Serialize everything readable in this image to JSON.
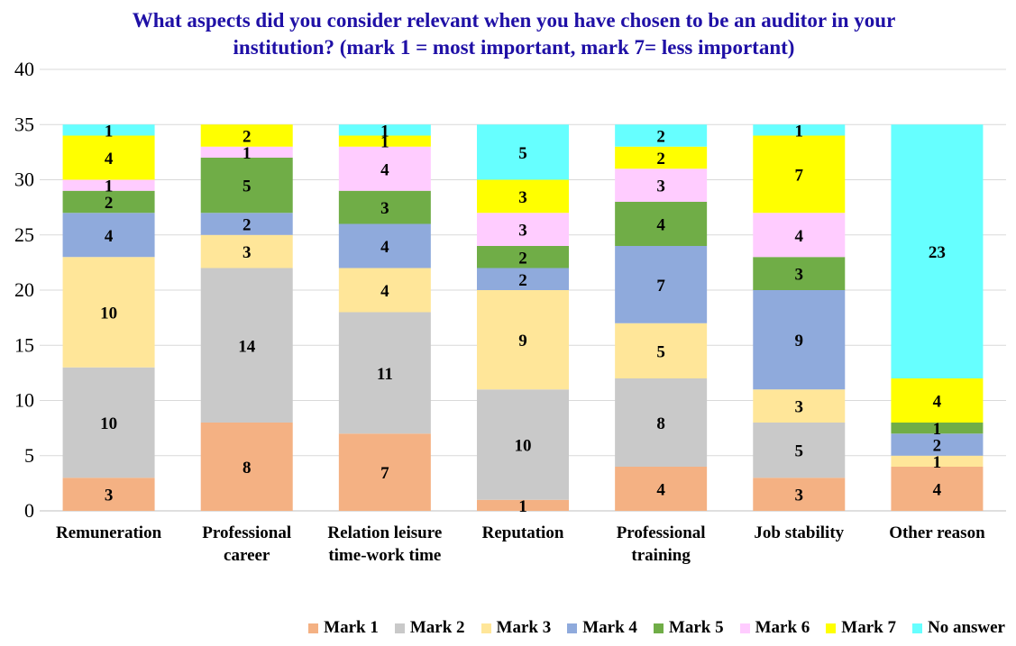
{
  "chart_data": {
    "type": "bar",
    "stacked": true,
    "title": "What aspects did you consider relevant when you have chosen to be an auditor in your institution? (mark 1 = most important, mark 7= less important)",
    "ylim": [
      0,
      40
    ],
    "yticks": [
      0,
      5,
      10,
      15,
      20,
      25,
      30,
      35,
      40
    ],
    "grid": true,
    "legend_position": "bottom-right",
    "categories": [
      [
        "Remuneration"
      ],
      [
        "Professional",
        "career"
      ],
      [
        "Relation leisure",
        "time-work time"
      ],
      [
        "Reputation"
      ],
      [
        "Professional",
        "training"
      ],
      [
        "Job stability"
      ],
      [
        "Other reason"
      ]
    ],
    "series": [
      {
        "name": "Mark 1",
        "color": "#f4b183",
        "values": [
          3,
          8,
          7,
          1,
          4,
          3,
          4
        ]
      },
      {
        "name": "Mark 2",
        "color": "#c9c9c9",
        "values": [
          10,
          14,
          11,
          10,
          8,
          5,
          0
        ]
      },
      {
        "name": "Mark 3",
        "color": "#ffe699",
        "values": [
          10,
          3,
          4,
          9,
          5,
          3,
          1
        ]
      },
      {
        "name": "Mark 4",
        "color": "#8faadc",
        "values": [
          4,
          2,
          4,
          2,
          7,
          9,
          2
        ]
      },
      {
        "name": "Mark 5",
        "color": "#70ad47",
        "values": [
          2,
          5,
          3,
          2,
          4,
          3,
          1
        ]
      },
      {
        "name": "Mark 6",
        "color": "#ffccff",
        "values": [
          1,
          1,
          4,
          3,
          3,
          4,
          0
        ]
      },
      {
        "name": "Mark 7",
        "color": "#ffff00",
        "values": [
          4,
          2,
          1,
          3,
          2,
          7,
          4
        ]
      },
      {
        "name": "No answer",
        "color": "#66ffff",
        "values": [
          1,
          0,
          1,
          5,
          2,
          1,
          23
        ]
      }
    ]
  }
}
